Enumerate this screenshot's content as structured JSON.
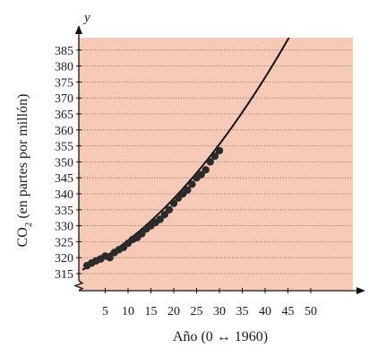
{
  "chart_data": {
    "type": "scatter",
    "title": "",
    "xlabel": "Año (0 ↔ 1960)",
    "ylabel_main": "CO",
    "ylabel_sub": "2",
    "ylabel_rest": " (en partes por millón)",
    "y_axis_letter": "y",
    "xlim": [
      0,
      53
    ],
    "ylim": [
      313,
      388
    ],
    "x_ticks": [
      5,
      10,
      15,
      20,
      25,
      30,
      35,
      40,
      45,
      50
    ],
    "y_ticks": [
      315,
      320,
      325,
      330,
      335,
      340,
      345,
      350,
      355,
      360,
      365,
      370,
      375,
      380,
      385
    ],
    "grid": true,
    "axis_break": "y",
    "colors": {
      "background": "#f7c9b7",
      "grid": "#7a6b66",
      "marker": "#2b2b2b",
      "curve": "#111111"
    },
    "series": [
      {
        "type": "scatter",
        "x": [
          1,
          2,
          3,
          4,
          5,
          6,
          7,
          8,
          9,
          10,
          11,
          12,
          13,
          14,
          15,
          16,
          17,
          18,
          19,
          20,
          21,
          22,
          23,
          24,
          25,
          26,
          27,
          28,
          29,
          30
        ],
        "y": [
          317.5,
          318.3,
          319.0,
          319.6,
          320.5,
          320.0,
          321.6,
          322.5,
          323.2,
          324.5,
          325.7,
          326.3,
          327.5,
          329.0,
          330.0,
          331.0,
          332.0,
          333.5,
          335.0,
          337.0,
          338.7,
          340.0,
          341.2,
          343.0,
          345.0,
          346.0,
          347.5,
          350.0,
          351.8,
          353.5
        ]
      },
      {
        "type": "line",
        "model": "y = 316.2 + 0.726 t + 0.0195 t^2",
        "coefficients": [
          316.2,
          0.726,
          0.0195
        ],
        "t_range": [
          0,
          46.6
        ]
      }
    ]
  }
}
